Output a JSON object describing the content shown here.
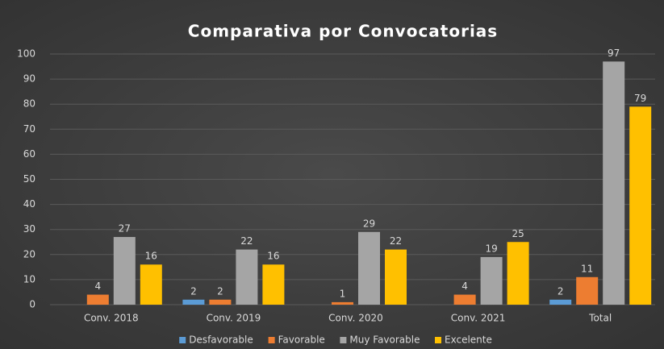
{
  "chart_data": {
    "type": "bar",
    "title": "Comparativa por Convocatorias",
    "categories": [
      "Conv. 2018",
      "Conv. 2019",
      "Conv. 2020",
      "Conv. 2021",
      "Total"
    ],
    "series": [
      {
        "name": "Desfavorable",
        "color": "#5b9bd5",
        "values": [
          null,
          2,
          null,
          null,
          2
        ]
      },
      {
        "name": "Favorable",
        "color": "#ed7d31",
        "values": [
          4,
          2,
          1,
          4,
          11
        ]
      },
      {
        "name": "Muy Favorable",
        "color": "#a5a5a5",
        "values": [
          27,
          22,
          29,
          19,
          97
        ]
      },
      {
        "name": "Excelente",
        "color": "#ffc000",
        "values": [
          16,
          16,
          22,
          25,
          79
        ]
      }
    ],
    "ylim": [
      0,
      100
    ],
    "yticks": [
      0,
      10,
      20,
      30,
      40,
      50,
      60,
      70,
      80,
      90,
      100
    ],
    "grid": true,
    "legend": "bottom"
  }
}
